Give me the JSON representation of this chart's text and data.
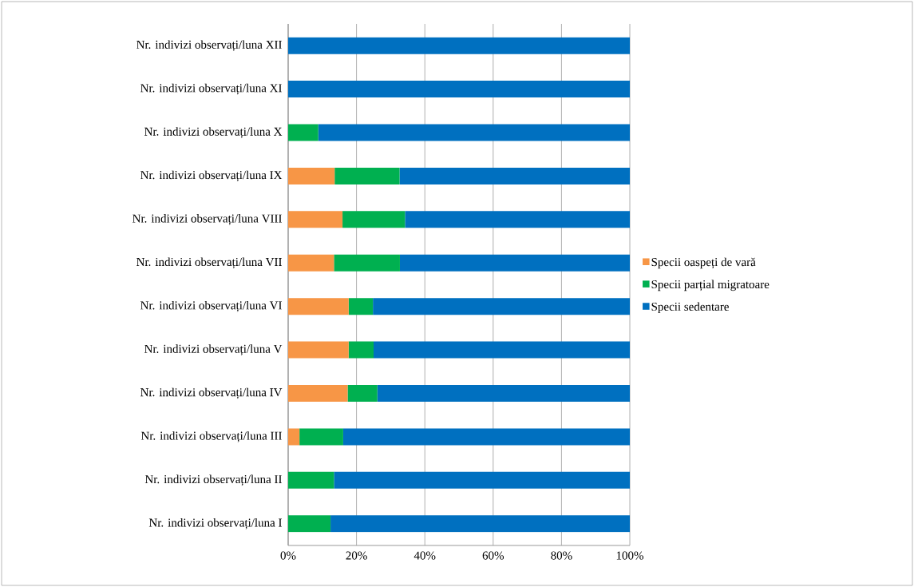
{
  "chart_data": {
    "type": "bar",
    "orientation": "horizontal",
    "stacked": true,
    "categories": [
      "Nr. indivizi observați/luna XII",
      "Nr. indivizi observați/luna XI",
      "Nr. indivizi observați/luna X",
      "Nr. indivizi observați/luna IX",
      "Nr. indivizi observați/luna VIII",
      "Nr. indivizi observați/luna VII",
      "Nr. indivizi observați/luna VI",
      "Nr. indivizi observați/luna V",
      "Nr. indivizi observați/luna IV",
      "Nr. indivizi observați/luna III",
      "Nr. indivizi observați/luna II",
      "Nr. indivizi observați/luna I"
    ],
    "series": [
      {
        "name": "Specii oaspeți de vară",
        "color": "#f79646",
        "values": [
          0,
          0,
          0,
          13.6,
          15.9,
          13.4,
          17.7,
          17.7,
          17.4,
          3.3,
          0,
          0
        ]
      },
      {
        "name": "Specii parțial migratoare",
        "color": "#00b050",
        "values": [
          0,
          0,
          8.8,
          19.0,
          18.3,
          19.3,
          7.1,
          7.3,
          8.7,
          12.8,
          13.4,
          12.4
        ]
      },
      {
        "name": "Specii sedentare",
        "color": "#0070c0",
        "values": [
          100,
          100,
          91.2,
          67.4,
          65.8,
          67.3,
          75.2,
          75.0,
          73.9,
          83.9,
          86.6,
          87.6
        ]
      }
    ],
    "xlim": [
      0,
      100
    ],
    "xticks": [
      {
        "value": 0,
        "label": "0%"
      },
      {
        "value": 20,
        "label": "20%"
      },
      {
        "value": 40,
        "label": "40%"
      },
      {
        "value": 60,
        "label": "60%"
      },
      {
        "value": 80,
        "label": "80%"
      },
      {
        "value": 100,
        "label": "100%"
      }
    ],
    "grid": "x",
    "legend": "right"
  }
}
